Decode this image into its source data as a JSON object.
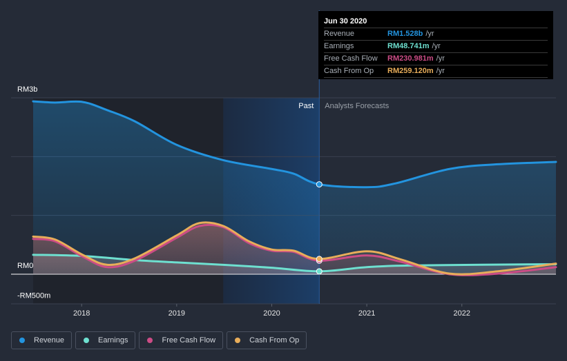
{
  "tooltip": {
    "date": "Jun 30 2020",
    "rows": [
      {
        "label": "Revenue",
        "value": "RM1.528b",
        "unit": "/yr",
        "color": "#2394df"
      },
      {
        "label": "Earnings",
        "value": "RM48.741m",
        "unit": "/yr",
        "color": "#6ee0d0"
      },
      {
        "label": "Free Cash Flow",
        "value": "RM230.981m",
        "unit": "/yr",
        "color": "#cc4c86"
      },
      {
        "label": "Cash From Op",
        "value": "RM259.120m",
        "unit": "/yr",
        "color": "#e8ad5a"
      }
    ]
  },
  "legend": [
    {
      "label": "Revenue",
      "color": "#2394df"
    },
    {
      "label": "Earnings",
      "color": "#6ee0d0"
    },
    {
      "label": "Free Cash Flow",
      "color": "#cc4c86"
    },
    {
      "label": "Cash From Op",
      "color": "#e8ad5a"
    }
  ],
  "chart_data": {
    "type": "line",
    "title": "",
    "xlabel": "",
    "ylabel": "",
    "units": "RM millions",
    "xlim": [
      2017.49,
      2022.99
    ],
    "ylim": [
      -500,
      3000
    ],
    "y_ticks": [
      {
        "value": 3000,
        "label": "RM3b"
      },
      {
        "value": 0,
        "label": "RM0"
      },
      {
        "value": -500,
        "label": "-RM500m"
      }
    ],
    "y_gridlines": [
      3000,
      2000,
      1000,
      0
    ],
    "x_ticks": [
      {
        "value": 2018,
        "label": "2018"
      },
      {
        "value": 2019,
        "label": "2019"
      },
      {
        "value": 2020,
        "label": "2020"
      },
      {
        "value": 2021,
        "label": "2021"
      },
      {
        "value": 2022,
        "label": "2022"
      }
    ],
    "grid": true,
    "legend_position": "bottom-left",
    "divider": {
      "x": 2020.5,
      "past_label": "Past",
      "forecast_label": "Analysts Forecasts"
    },
    "highlight_band": [
      2019.49,
      2020.5
    ],
    "series": [
      {
        "name": "Revenue",
        "color": "#2394df",
        "fill": true,
        "x": [
          2017.49,
          2017.72,
          2018.01,
          2018.27,
          2018.56,
          2019.0,
          2019.49,
          2020.0,
          2020.23,
          2020.5,
          2021.0,
          2021.29,
          2021.87,
          2022.38,
          2022.99
        ],
        "values": [
          2940,
          2920,
          2930,
          2790,
          2600,
          2200,
          1940,
          1790,
          1710,
          1528,
          1480,
          1540,
          1790,
          1870,
          1910
        ]
      },
      {
        "name": "Earnings",
        "color": "#6ee0d0",
        "fill": true,
        "x": [
          2017.49,
          2018.01,
          2018.56,
          2019.0,
          2019.49,
          2020.0,
          2020.5,
          2021.0,
          2021.51,
          2022.99
        ],
        "values": [
          330,
          310,
          240,
          200,
          160,
          110,
          48.741,
          120,
          150,
          170
        ]
      },
      {
        "name": "Free Cash Flow",
        "color": "#cc4c86",
        "fill": true,
        "x": [
          2017.49,
          2017.72,
          2018.01,
          2018.27,
          2018.56,
          2019.0,
          2019.24,
          2019.49,
          2019.76,
          2020.0,
          2020.23,
          2020.5,
          2021.0,
          2021.36,
          2021.87,
          2022.38,
          2022.99
        ],
        "values": [
          600,
          560,
          300,
          120,
          230,
          620,
          820,
          800,
          530,
          400,
          380,
          230.981,
          320,
          210,
          0,
          10,
          120
        ]
      },
      {
        "name": "Cash From Op",
        "color": "#e8ad5a",
        "fill": true,
        "x": [
          2017.49,
          2017.72,
          2018.01,
          2018.27,
          2018.56,
          2019.0,
          2019.24,
          2019.49,
          2019.76,
          2020.0,
          2020.23,
          2020.5,
          2021.0,
          2021.36,
          2021.87,
          2022.38,
          2022.99
        ],
        "values": [
          640,
          590,
          330,
          160,
          270,
          660,
          870,
          820,
          560,
          420,
          400,
          259.12,
          390,
          250,
          10,
          50,
          180
        ]
      }
    ]
  }
}
